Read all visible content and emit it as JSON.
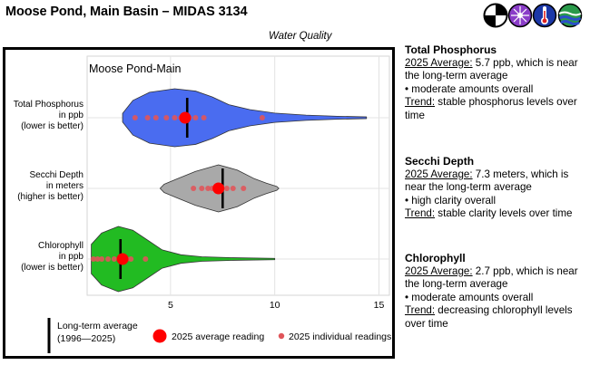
{
  "header": {
    "title": "Moose Pond, Main Basin – MIDAS 3134",
    "section": "Water Quality",
    "icons": [
      "anemometer-icon",
      "microbe-icon",
      "thermometer-icon",
      "lake-waves-icon"
    ]
  },
  "chart_data": {
    "type": "violin",
    "title": "Moose Pond-Main",
    "x_ticks": [
      5,
      10,
      15
    ],
    "xlim": [
      1,
      15.5
    ],
    "colors": {
      "Total Phosphorus": "#4a6cf0",
      "Secchi Depth": "#a9a9a9",
      "Chlorophyll": "#22bb22"
    },
    "series": [
      {
        "name": "Total Phosphorus",
        "label_lines": [
          "Total Phosphorus",
          "in ppb",
          "(lower is better)"
        ],
        "color": "#4a6cf0",
        "long_term_average": 5.8,
        "average_2025": 5.7,
        "individual_2025": [
          3.3,
          3.9,
          4.3,
          4.8,
          5.2,
          5.5,
          5.9,
          6.2,
          6.6,
          9.4
        ],
        "density": [
          [
            2.7,
            0.15
          ],
          [
            3.2,
            0.6
          ],
          [
            4.0,
            0.88
          ],
          [
            5.2,
            1.0
          ],
          [
            6.2,
            0.92
          ],
          [
            7.0,
            0.72
          ],
          [
            7.8,
            0.45
          ],
          [
            8.8,
            0.28
          ],
          [
            10.0,
            0.16
          ],
          [
            11.5,
            0.09
          ],
          [
            13.0,
            0.05
          ],
          [
            14.4,
            0.03
          ]
        ]
      },
      {
        "name": "Secchi Depth",
        "label_lines": [
          "Secchi Depth",
          "in meters",
          "(higher is better)"
        ],
        "color": "#a9a9a9",
        "long_term_average": 7.5,
        "average_2025": 7.3,
        "individual_2025": [
          6.1,
          6.5,
          6.8,
          7.0,
          7.2,
          7.4,
          7.7,
          8.0,
          8.5
        ],
        "density": [
          [
            4.5,
            0.0
          ],
          [
            4.7,
            0.18
          ],
          [
            5.3,
            0.4
          ],
          [
            6.2,
            0.72
          ],
          [
            7.3,
            1.0
          ],
          [
            8.2,
            0.78
          ],
          [
            9.0,
            0.42
          ],
          [
            9.6,
            0.22
          ],
          [
            10.1,
            0.08
          ],
          [
            10.2,
            0.0
          ]
        ]
      },
      {
        "name": "Chlorophyll",
        "label_lines": [
          "Chlorophyll",
          "in ppb",
          "(lower is better)"
        ],
        "color": "#22bb22",
        "long_term_average": 2.6,
        "average_2025": 2.7,
        "individual_2025": [
          1.3,
          1.5,
          1.7,
          2.0,
          2.3,
          2.6,
          2.9,
          3.1,
          3.8
        ],
        "density": [
          [
            1.2,
            0.45
          ],
          [
            1.7,
            0.8
          ],
          [
            2.5,
            1.0
          ],
          [
            3.2,
            0.88
          ],
          [
            3.9,
            0.58
          ],
          [
            4.6,
            0.28
          ],
          [
            5.5,
            0.13
          ],
          [
            6.5,
            0.07
          ],
          [
            8.0,
            0.04
          ],
          [
            10.0,
            0.02
          ]
        ]
      }
    ],
    "legend": {
      "long_term_line": [
        "Long-term average",
        "(1996—2025)"
      ],
      "average_dot": "2025 average reading",
      "individual_dot": "2025 individual readings"
    }
  },
  "summaries": [
    {
      "heading": "Total Phosphorus",
      "avg_label": "2025 Average:",
      "lines": [
        " 5.7 ppb, which is near",
        "the long-term average",
        "• moderate amounts overall"
      ],
      "trend_label": "Trend:",
      "trend_lines": [
        " stable phosphorus levels over",
        "time"
      ]
    },
    {
      "heading": "Secchi Depth",
      "avg_label": "2025 Average:",
      "lines": [
        " 7.3 meters, which is",
        "near the long-term average",
        "• high clarity overall"
      ],
      "trend_label": "Trend:",
      "trend_lines": [
        " stable clarity levels over time"
      ]
    },
    {
      "heading": "Chlorophyll",
      "avg_label": "2025 Average:",
      "lines": [
        " 2.7 ppb, which is near",
        "the long-term average",
        "• moderate amounts overall"
      ],
      "trend_label": "Trend:",
      "trend_lines": [
        " decreasing chlorophyll levels",
        "over time"
      ]
    }
  ]
}
